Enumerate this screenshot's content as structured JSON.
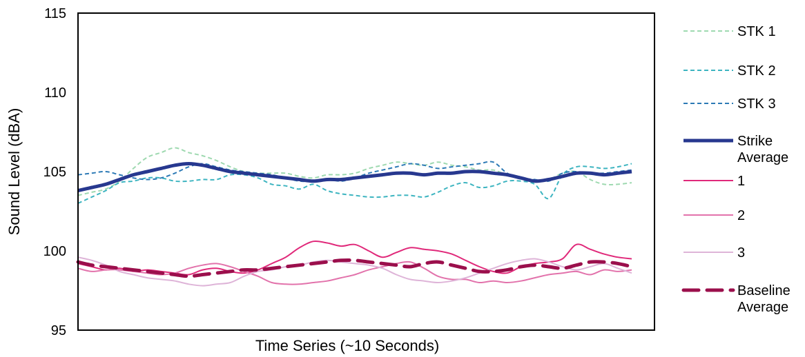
{
  "chart_data": {
    "type": "line",
    "xlabel": "Time Series (~10 Seconds)",
    "ylabel": "Sound Level (dBA)",
    "ylim": [
      95,
      115
    ],
    "yticks": [
      "95",
      "100",
      "105",
      "110",
      "115"
    ],
    "grid": false,
    "legend_position": "right",
    "x": [
      0,
      1,
      2,
      3,
      4,
      5,
      6,
      7,
      8,
      9,
      10,
      11,
      12,
      13,
      14,
      15,
      16,
      17,
      18,
      19,
      20,
      21,
      22,
      23,
      24,
      25,
      26,
      27,
      28,
      29,
      30,
      31,
      32,
      33,
      34,
      35,
      36,
      37,
      38,
      39,
      40
    ],
    "series": [
      {
        "name": "STK 1",
        "color": "#9ed9b0",
        "dash": "dashed",
        "width": 2,
        "values": [
          103.5,
          103.7,
          103.9,
          104.4,
          105.2,
          105.9,
          106.2,
          106.5,
          106.2,
          106.0,
          105.7,
          105.3,
          105.0,
          104.9,
          104.9,
          104.9,
          104.7,
          104.6,
          104.8,
          104.8,
          104.9,
          105.2,
          105.4,
          105.6,
          105.5,
          105.4,
          105.6,
          105.4,
          105.3,
          105.1,
          105.1,
          104.8,
          104.6,
          104.4,
          104.5,
          104.9,
          105.0,
          104.5,
          104.2,
          104.2,
          104.3
        ]
      },
      {
        "name": "STK 2",
        "color": "#3cb4c0",
        "dash": "dashed",
        "width": 2,
        "values": [
          103.0,
          103.4,
          103.8,
          104.3,
          104.4,
          104.6,
          104.6,
          104.4,
          104.4,
          104.5,
          104.5,
          104.8,
          104.8,
          104.6,
          104.2,
          104.1,
          103.9,
          104.2,
          103.8,
          103.6,
          103.5,
          103.4,
          103.4,
          103.5,
          103.5,
          103.4,
          103.7,
          104.1,
          104.3,
          104.0,
          104.1,
          104.4,
          104.4,
          104.2,
          103.3,
          104.8,
          105.3,
          105.3,
          105.2,
          105.3,
          105.5
        ]
      },
      {
        "name": "STK 3",
        "color": "#2b79b5",
        "dash": "dashed",
        "width": 2,
        "values": [
          104.8,
          104.9,
          105.0,
          104.8,
          104.6,
          104.5,
          104.6,
          104.9,
          105.3,
          105.5,
          105.3,
          105.1,
          105.0,
          104.9,
          104.8,
          104.6,
          104.4,
          104.4,
          104.5,
          104.4,
          104.6,
          104.9,
          105.1,
          105.3,
          105.5,
          105.4,
          105.2,
          105.3,
          105.4,
          105.5,
          105.6,
          104.9,
          104.6,
          104.5,
          104.4,
          104.9,
          105.0,
          104.9,
          104.9,
          105.0,
          105.1
        ]
      },
      {
        "name": "Strike Average",
        "color": "#27388f",
        "dash": "solid",
        "width": 5,
        "values": [
          103.8,
          104.0,
          104.2,
          104.5,
          104.8,
          105.0,
          105.2,
          105.4,
          105.5,
          105.4,
          105.2,
          105.0,
          104.9,
          104.8,
          104.7,
          104.6,
          104.5,
          104.4,
          104.5,
          104.5,
          104.6,
          104.7,
          104.8,
          104.9,
          104.9,
          104.8,
          104.9,
          104.9,
          105.0,
          105.0,
          104.9,
          104.8,
          104.6,
          104.4,
          104.5,
          104.7,
          104.9,
          104.9,
          104.8,
          104.9,
          105.0
        ]
      },
      {
        "name": "1",
        "color": "#e0297a",
        "dash": "solid",
        "width": 2,
        "values": [
          99.2,
          99.0,
          98.8,
          98.9,
          98.7,
          98.8,
          98.7,
          98.6,
          98.5,
          98.8,
          98.9,
          98.7,
          98.6,
          98.8,
          99.2,
          99.6,
          100.2,
          100.6,
          100.5,
          100.3,
          100.4,
          100.0,
          99.6,
          99.9,
          100.2,
          100.1,
          100.0,
          99.8,
          99.4,
          99.0,
          98.7,
          98.6,
          99.0,
          99.2,
          99.3,
          99.5,
          100.4,
          100.1,
          99.8,
          99.6,
          99.5
        ]
      },
      {
        "name": "2",
        "color": "#e272ab",
        "dash": "solid",
        "width": 2,
        "values": [
          98.9,
          98.7,
          98.8,
          98.8,
          98.7,
          98.6,
          98.5,
          98.6,
          98.9,
          99.1,
          99.2,
          99.0,
          98.7,
          98.4,
          98.0,
          97.9,
          97.9,
          98.0,
          98.1,
          98.3,
          98.5,
          98.8,
          99.0,
          99.2,
          99.3,
          98.9,
          98.4,
          98.2,
          98.2,
          98.0,
          98.1,
          98.0,
          98.1,
          98.3,
          98.5,
          98.6,
          98.7,
          98.5,
          98.8,
          98.7,
          98.8
        ]
      },
      {
        "name": "3",
        "color": "#deb4d8",
        "dash": "solid",
        "width": 2,
        "values": [
          99.6,
          99.4,
          99.1,
          98.7,
          98.5,
          98.3,
          98.2,
          98.1,
          97.9,
          97.8,
          97.9,
          98.0,
          98.4,
          98.7,
          98.8,
          99.0,
          99.1,
          99.3,
          99.4,
          99.3,
          99.2,
          99.1,
          98.9,
          98.5,
          98.2,
          98.1,
          98.0,
          98.1,
          98.3,
          98.6,
          98.9,
          99.2,
          99.4,
          99.5,
          99.3,
          99.0,
          98.8,
          99.0,
          99.2,
          98.9,
          98.6
        ]
      },
      {
        "name": "Baseline Average",
        "color": "#9b0f4c",
        "dash": "long-dash",
        "width": 5,
        "values": [
          99.3,
          99.1,
          99.0,
          98.9,
          98.8,
          98.7,
          98.6,
          98.5,
          98.4,
          98.5,
          98.6,
          98.7,
          98.8,
          98.8,
          98.9,
          99.0,
          99.1,
          99.2,
          99.3,
          99.4,
          99.4,
          99.3,
          99.2,
          99.1,
          99.0,
          99.2,
          99.3,
          99.1,
          98.9,
          98.7,
          98.7,
          98.8,
          99.0,
          99.1,
          99.0,
          98.9,
          99.1,
          99.3,
          99.3,
          99.2,
          99.0
        ]
      }
    ]
  },
  "legend": {
    "entries": [
      {
        "lines": [
          "STK 1"
        ]
      },
      {
        "lines": [
          "STK 2"
        ]
      },
      {
        "lines": [
          "STK 3"
        ]
      },
      {
        "lines": [
          "Strike",
          "Average"
        ]
      },
      {
        "lines": [
          "1"
        ]
      },
      {
        "lines": [
          "2"
        ]
      },
      {
        "lines": [
          "3"
        ]
      },
      {
        "lines": [
          "Baseline",
          "Average"
        ]
      }
    ]
  }
}
